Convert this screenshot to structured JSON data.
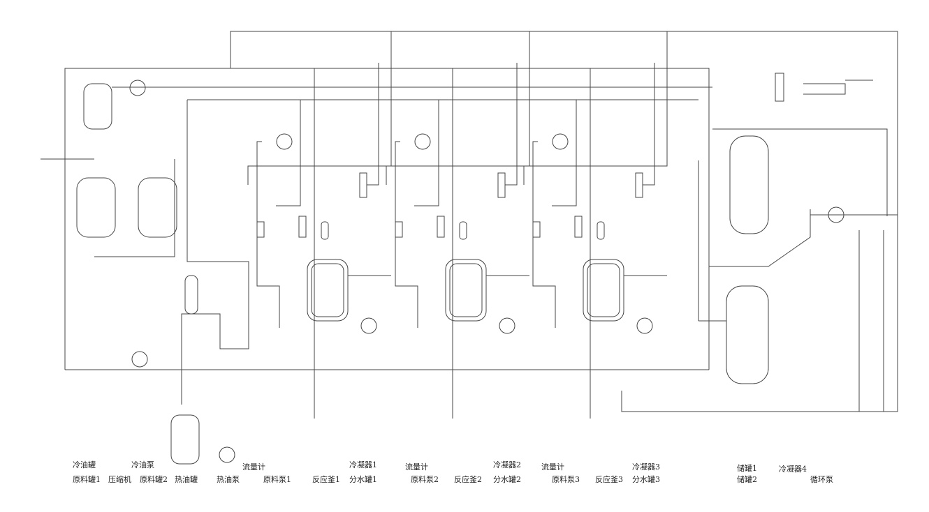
{
  "labels": [
    "冷油罐",
    "冷油泵",
    "流量计",
    "冷凝器1",
    "流量计",
    "冷凝器2",
    "流量计",
    "冷凝器3",
    "储罐1",
    "冷凝器4",
    "原料罐1",
    "压缩机",
    "原料罐2",
    "热油罐",
    "热油泵",
    "原料泵1",
    "反应釜1",
    "分水罐1",
    "原料泵2",
    "反应釜2",
    "分水罐2",
    "原料泵3",
    "反应釜3",
    "分水罐3",
    "储罐2",
    "循环泵"
  ]
}
